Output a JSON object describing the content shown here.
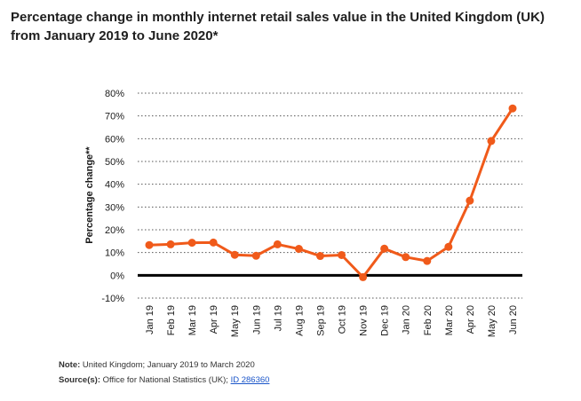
{
  "title": "Percentage change in monthly internet retail sales value in the United Kingdom (UK) from January 2019 to June 2020*",
  "note": {
    "label": "Note:",
    "text": "United Kingdom; January 2019 to March 2020"
  },
  "source": {
    "label": "Source(s):",
    "text": "Office for National Statistics (UK);",
    "link": "ID 286360"
  },
  "chart_data": {
    "type": "line",
    "title": "Percentage change in monthly internet retail sales value in the United Kingdom (UK) from January 2019 to June 2020*",
    "xlabel": "",
    "ylabel": "Percentage change**",
    "categories": [
      "Jan 19",
      "Feb 19",
      "Mar 19",
      "Apr 19",
      "May 19",
      "Jun 19",
      "Jul 19",
      "Aug 19",
      "Sep 19",
      "Oct 19",
      "Nov 19",
      "Dec 19",
      "Jan 20",
      "Feb 20",
      "Mar 20",
      "Apr 20",
      "May 20",
      "Jun 20"
    ],
    "series": [
      {
        "values": [
          13.3,
          13.6,
          14.3,
          14.4,
          9.0,
          8.6,
          13.6,
          11.6,
          8.5,
          8.9,
          -0.8,
          11.7,
          8.0,
          6.3,
          12.5,
          32.8,
          59.0,
          73.3
        ]
      }
    ],
    "ylim": [
      -10,
      80
    ],
    "yticks": [
      -10,
      0,
      10,
      20,
      30,
      40,
      50,
      60,
      70,
      80
    ],
    "ytick_labels": [
      "-10%",
      "0%",
      "10%",
      "20%",
      "30%",
      "40%",
      "50%",
      "60%",
      "70%",
      "80%"
    ],
    "grid": true,
    "legend": "none",
    "line_color": "#f05a1a",
    "zero_line_color": "#000000"
  }
}
